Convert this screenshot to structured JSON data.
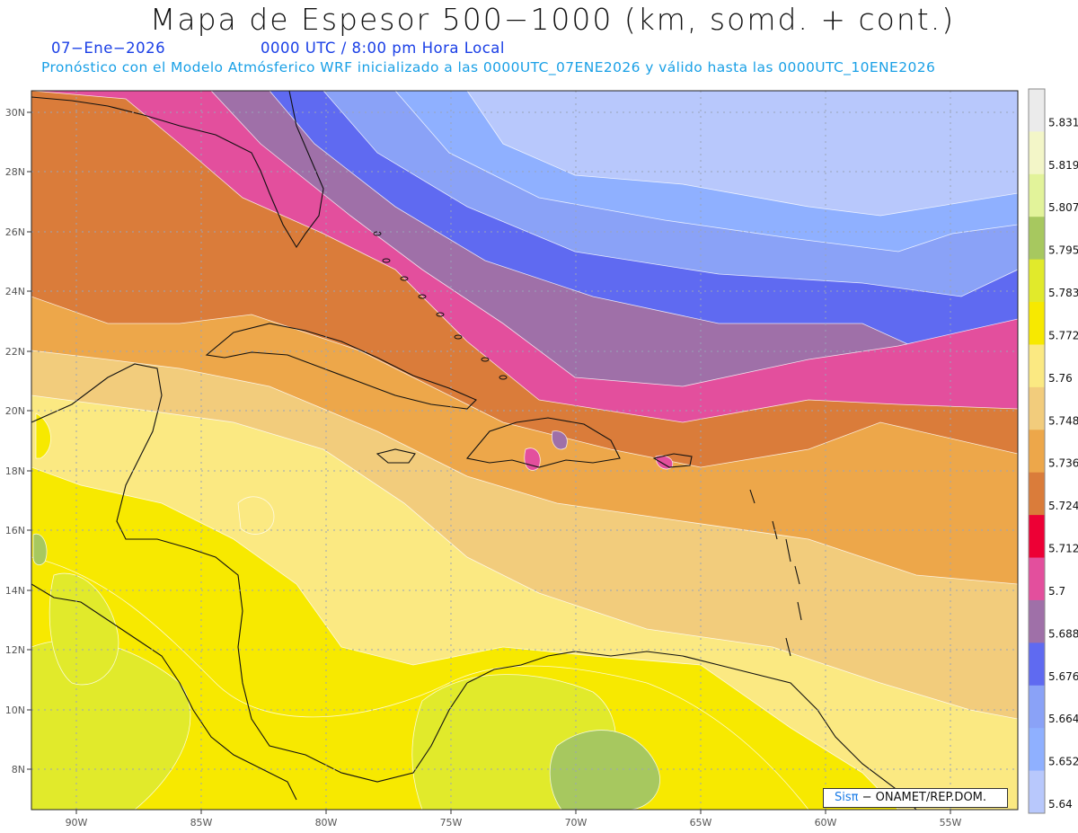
{
  "header": {
    "title": "Mapa de Espesor 500−1000 (km, somd. + cont.)",
    "date": "07−Ene−2026",
    "time": "0000 UTC / 8:00 pm Hora Local",
    "forecast": "Pronóstico con el Modelo Atmósferico WRF inicializado a las 0000UTC_07ENE2026 y válido hasta las  0000UTC_10ENE2026"
  },
  "map": {
    "lat_labels": [
      "30N",
      "28N",
      "26N",
      "24N",
      "22N",
      "20N",
      "18N",
      "16N",
      "14N",
      "12N",
      "10N",
      "8N"
    ],
    "lon_labels": [
      "90W",
      "85W",
      "80W",
      "75W",
      "70W",
      "65W",
      "60W",
      "55W"
    ],
    "grid": "dotted"
  },
  "colorbar": {
    "labels": [
      "5.831",
      "5.819",
      "5.807",
      "5.795",
      "5.783",
      "5.772",
      "5.76",
      "5.748",
      "5.736",
      "5.724",
      "5.712",
      "5.7",
      "5.688",
      "5.676",
      "5.664",
      "5.652",
      "5.64"
    ],
    "colors": [
      "#ebebeb",
      "#f3f6c8",
      "#e2f39a",
      "#a7c85f",
      "#e1ea2b",
      "#f7e900",
      "#fbe982",
      "#f2cc7c",
      "#eda74a",
      "#da7c3a",
      "#ed0035",
      "#e34f9d",
      "#9f70a8",
      "#5f6af1",
      "#8aa2f7",
      "#8fb0ff",
      "#b8c8fc"
    ]
  },
  "credit": {
    "logo": "Sisπ",
    "text": "− ONAMET/REP.DOM."
  }
}
